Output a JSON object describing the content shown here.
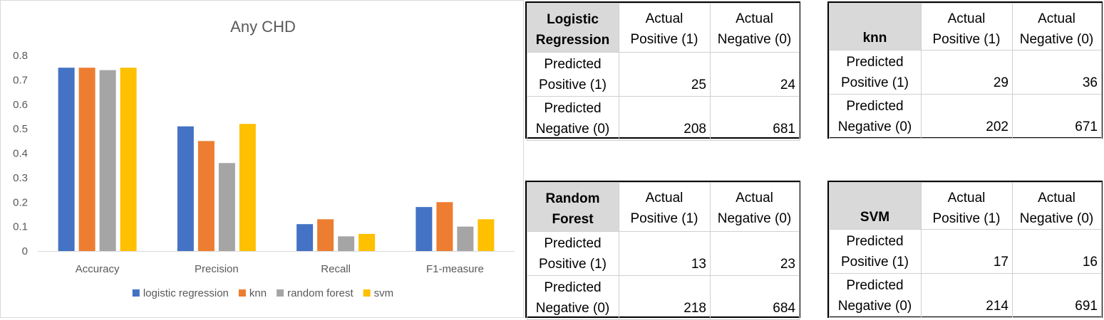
{
  "chart_data": {
    "type": "bar",
    "title": "Any CHD",
    "categories": [
      "Accuracy",
      "Precision",
      "Recall",
      "F1-measure"
    ],
    "series": [
      {
        "name": "logistic regression",
        "color": "#4472c4",
        "values": [
          0.75,
          0.51,
          0.11,
          0.18
        ]
      },
      {
        "name": "knn",
        "color": "#ed7d31",
        "values": [
          0.75,
          0.45,
          0.13,
          0.2
        ]
      },
      {
        "name": "random forest",
        "color": "#a5a5a5",
        "values": [
          0.74,
          0.36,
          0.06,
          0.1
        ]
      },
      {
        "name": "svm",
        "color": "#ffc000",
        "values": [
          0.75,
          0.52,
          0.07,
          0.13
        ]
      }
    ],
    "ylim": [
      0,
      0.8
    ],
    "yticks": [
      "0",
      "0.1",
      "0.2",
      "0.3",
      "0.4",
      "0.5",
      "0.6",
      "0.7",
      "0.8"
    ],
    "grid": false,
    "legend": "bottom"
  },
  "confusion_matrices": [
    {
      "model_line1": "Logistic",
      "model_line2": "Regression",
      "col1_line1": "Actual",
      "col1_line2": "Positive (1)",
      "col2_line1": "Actual",
      "col2_line2": "Negative (0)",
      "row1_line1": "Predicted",
      "row1_line2": "Positive (1)",
      "row2_line1": "Predicted",
      "row2_line2": "Negative (0)",
      "tp": "25",
      "fp": "24",
      "fn": "208",
      "tn": "681"
    },
    {
      "model_line1": "knn",
      "col1_line1": "Actual",
      "col1_line2": "Positive (1)",
      "col2_line1": "Actual",
      "col2_line2": "Negative (0)",
      "row1_line1": "Predicted",
      "row1_line2": "Positive (1)",
      "row2_line1": "Predicted",
      "row2_line2": "Negative (0)",
      "tp": "29",
      "fp": "36",
      "fn": "202",
      "tn": "671"
    },
    {
      "model_line1": "Random",
      "model_line2": "Forest",
      "col1_line1": "Actual",
      "col1_line2": "Positive (1)",
      "col2_line1": "Actual",
      "col2_line2": "Negative (0)",
      "row1_line1": "Predicted",
      "row1_line2": "Positive (1)",
      "row2_line1": "Predicted",
      "row2_line2": "Negative (0)",
      "tp": "13",
      "fp": "23",
      "fn": "218",
      "tn": "684"
    },
    {
      "model_line1": "SVM",
      "col1_line1": "Actual",
      "col1_line2": "Positive (1)",
      "col2_line1": "Actual",
      "col2_line2": "Negative (0)",
      "row1_line1": "Predicted",
      "row1_line2": "Positive (1)",
      "row2_line1": "Predicted",
      "row2_line2": "Negative (0)",
      "tp": "17",
      "fp": "16",
      "fn": "214",
      "tn": "691"
    }
  ]
}
